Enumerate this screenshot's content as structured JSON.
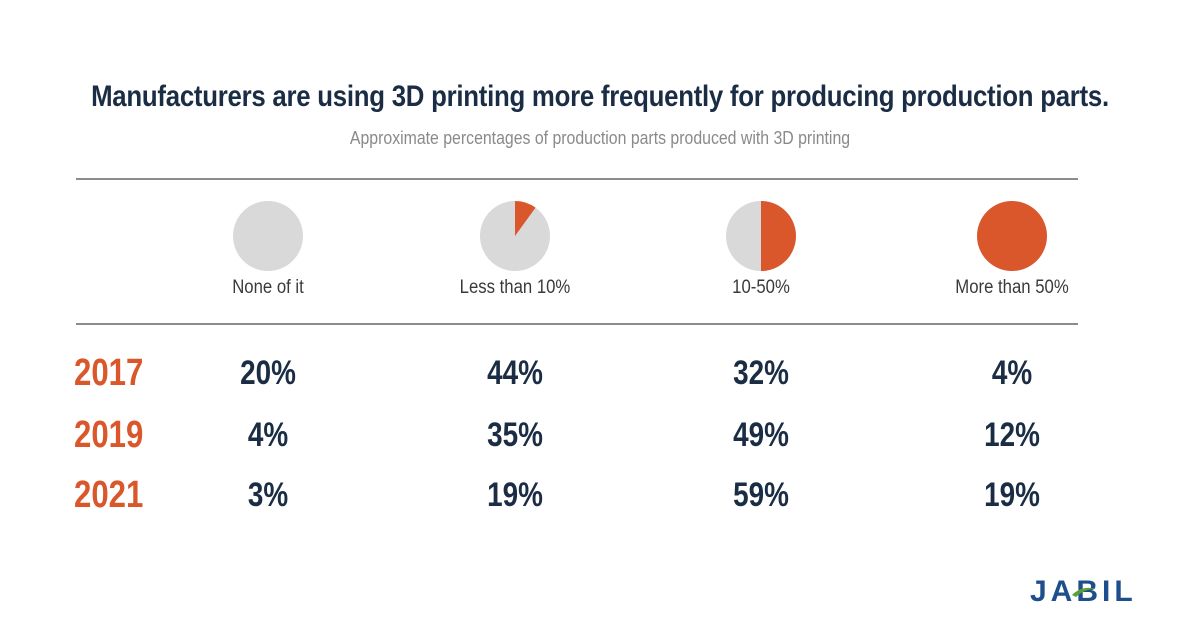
{
  "title": "Manufacturers are using 3D printing more frequently for producing production parts.",
  "subtitle": "Approximate percentages of production parts produced with 3D printing",
  "brand": "JABIL",
  "colors": {
    "accent": "#d9572b",
    "pie_bg": "#d9d9d9",
    "navy": "#1b2d45",
    "logo_blue": "#1f4e8c",
    "logo_green": "#5aa032"
  },
  "chart_data": {
    "type": "table",
    "title": "Manufacturers are using 3D printing more frequently for producing production parts.",
    "subtitle": "Approximate percentages of production parts produced with 3D printing",
    "categories": [
      "None of it",
      "Less than 10%",
      "10-50%",
      "More than 50%"
    ],
    "category_icon_fraction": [
      0,
      0.1,
      0.5,
      1
    ],
    "series": [
      {
        "name": "2017",
        "values": [
          "20%",
          "44%",
          "32%",
          "4%"
        ]
      },
      {
        "name": "2019",
        "values": [
          "4%",
          "35%",
          "49%",
          "12%"
        ]
      },
      {
        "name": "2021",
        "values": [
          "3%",
          "19%",
          "59%",
          "19%"
        ]
      }
    ]
  }
}
